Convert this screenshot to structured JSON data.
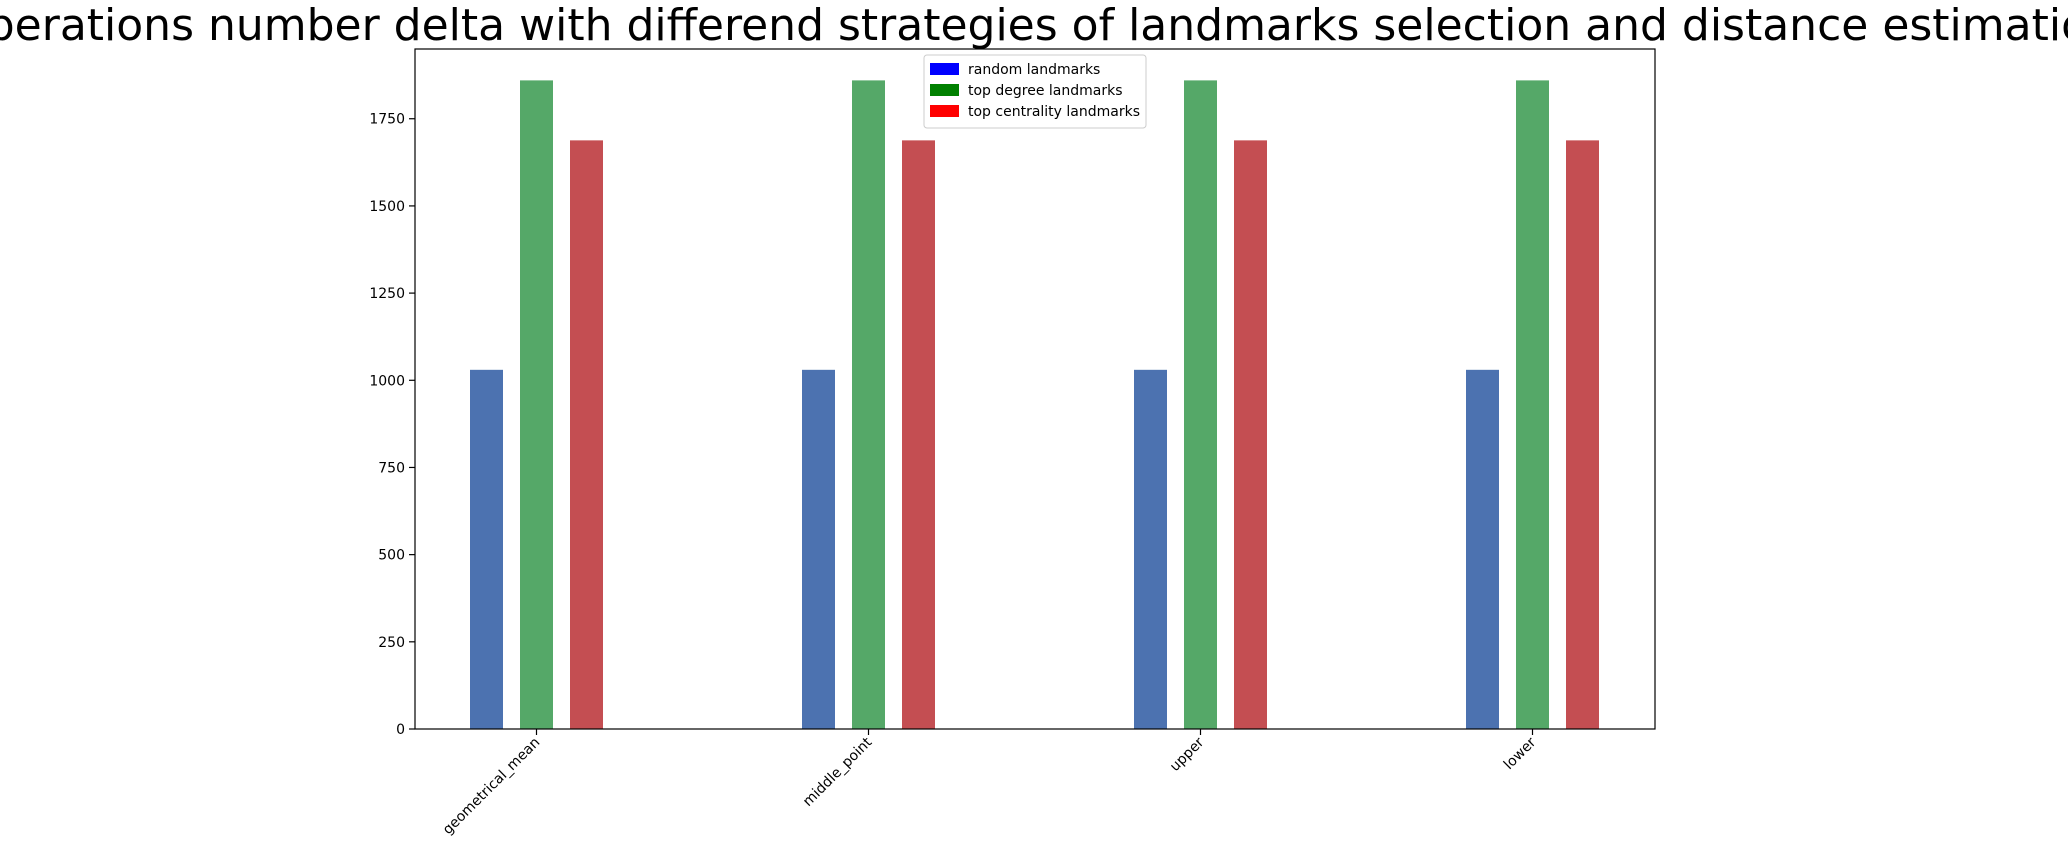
{
  "chart_data": {
    "type": "bar",
    "title": "Operations number delta with differend strategies of landmarks selection and distance estimation",
    "xlabel": "",
    "ylabel": "",
    "categories": [
      "geometrical_mean",
      "middle_point",
      "upper",
      "lower"
    ],
    "series": [
      {
        "name": "random landmarks",
        "color": "#4c72b0",
        "legend_color": "#0000ff",
        "values": [
          1030,
          1030,
          1030,
          1030
        ]
      },
      {
        "name": "top degree landmarks",
        "color": "#55a868",
        "legend_color": "#008000",
        "values": [
          1860,
          1860,
          1860,
          1860
        ]
      },
      {
        "name": "top centrality landmarks",
        "color": "#c44e52",
        "legend_color": "#ff0000",
        "values": [
          1688,
          1688,
          1688,
          1688
        ]
      }
    ],
    "ylim": [
      0,
      1950
    ],
    "yticks": [
      0,
      250,
      500,
      750,
      1000,
      1250,
      1500,
      1750
    ],
    "ytick_labels": [
      "0",
      "250",
      "500",
      "750",
      "1000",
      "1250",
      "1500",
      "1750"
    ],
    "xtick_rotation": -45,
    "grid": false,
    "legend_position": "top-center"
  }
}
